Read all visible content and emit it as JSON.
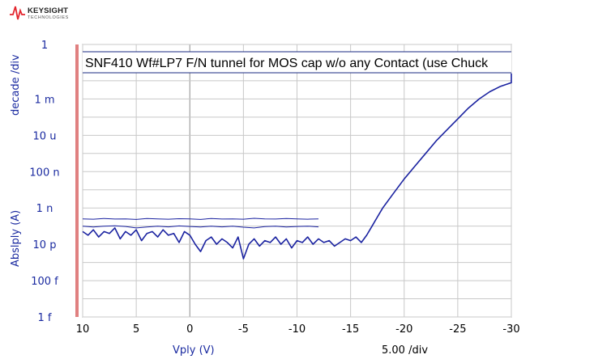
{
  "brand": {
    "name": "KEYSIGHT",
    "sub": "TECHNOLOGIES",
    "color": "#e3262e"
  },
  "chart_data": {
    "type": "line",
    "title": "SNF410 Wf#LP7 F/N tunnel for MOS cap w/o any Contact (use Chuck",
    "xlabel": "Vply (V)",
    "ylabel": "Abslply (A)",
    "ylabel_unit": "decade /div",
    "xdiv_label": "5.00 /div",
    "xlim": [
      10,
      -30
    ],
    "ylim_log10": [
      -15,
      0
    ],
    "x_ticks": [
      "10",
      "5",
      "0",
      "-5",
      "-10",
      "-15",
      "-20",
      "-25",
      "-30"
    ],
    "x_tick_values": [
      10,
      5,
      0,
      -5,
      -10,
      -15,
      -20,
      -25,
      -30
    ],
    "y_ticks": [
      "1",
      "1 m",
      "10 u",
      "100 n",
      "1 n",
      "10 p",
      "100 f",
      "1 f"
    ],
    "y_tick_values_log10": [
      0,
      -3,
      -5,
      -7,
      -9,
      -11,
      -13,
      -15
    ],
    "grid": true,
    "colors": {
      "trace": "#1a22a0",
      "frame_left": "#e08080",
      "grid": "#c8c8c8",
      "zero_line": "#a0a0a0"
    },
    "series": [
      {
        "x": [
          10,
          9,
          8,
          7,
          6,
          5,
          4,
          3,
          2,
          1,
          0,
          -1,
          -2,
          -3,
          -4,
          -5,
          -6,
          -7,
          -8,
          -9,
          -10,
          -11,
          -12
        ],
        "y_log10": [
          -9.6,
          -9.62,
          -9.58,
          -9.61,
          -9.6,
          -9.63,
          -9.58,
          -9.6,
          -9.62,
          -9.59,
          -9.6,
          -9.63,
          -9.58,
          -9.61,
          -9.6,
          -9.62,
          -9.57,
          -9.6,
          -9.61,
          -9.58,
          -9.6,
          -9.62,
          -9.6
        ]
      },
      {
        "x": [
          10,
          9,
          8,
          7,
          6,
          5,
          4,
          3,
          2,
          1,
          0,
          -1,
          -2,
          -3,
          -4,
          -5,
          -6,
          -7,
          -8,
          -9,
          -10,
          -11,
          -12
        ],
        "y_log10": [
          -10.0,
          -10.05,
          -10.0,
          -9.98,
          -10.02,
          -10.1,
          -10.05,
          -10.0,
          -10.04,
          -9.99,
          -10.02,
          -10.05,
          -10.0,
          -10.04,
          -10.0,
          -10.06,
          -10.1,
          -10.03,
          -10.0,
          -10.05,
          -10.02,
          -10.0,
          -10.04
        ]
      },
      {
        "x": [
          10,
          9.5,
          9,
          8.5,
          8,
          7.5,
          7,
          6.5,
          6,
          5.5,
          5,
          4.5,
          4,
          3.5,
          3,
          2.5,
          2,
          1.5,
          1,
          0.5,
          0,
          -0.5,
          -1,
          -1.5,
          -2,
          -2.5,
          -3,
          -3.5,
          -4,
          -4.5,
          -5,
          -5.5,
          -6,
          -6.5,
          -7,
          -7.5,
          -8,
          -8.5,
          -9,
          -9.5,
          -10,
          -10.5,
          -11,
          -11.5,
          -12,
          -12.5,
          -13,
          -13.5,
          -14,
          -14.5,
          -15,
          -15.5,
          -16,
          -16.5,
          -17,
          -17.5,
          -18,
          -19,
          -20,
          -21,
          -22,
          -23,
          -24,
          -25,
          -26,
          -27,
          -28,
          -29,
          -30,
          -30
        ],
        "y_log10": [
          -10.3,
          -10.5,
          -10.2,
          -10.6,
          -10.3,
          -10.4,
          -10.1,
          -10.7,
          -10.3,
          -10.5,
          -10.2,
          -10.8,
          -10.4,
          -10.3,
          -10.6,
          -10.2,
          -10.5,
          -10.4,
          -10.9,
          -10.3,
          -10.5,
          -11.0,
          -11.4,
          -10.8,
          -10.6,
          -11.0,
          -10.7,
          -10.9,
          -11.2,
          -10.6,
          -11.8,
          -11.0,
          -10.7,
          -11.1,
          -10.8,
          -10.9,
          -10.6,
          -11.0,
          -10.7,
          -11.2,
          -10.8,
          -10.9,
          -10.6,
          -11.0,
          -10.7,
          -10.9,
          -10.8,
          -11.1,
          -10.9,
          -10.7,
          -10.8,
          -10.6,
          -10.9,
          -10.5,
          -10.0,
          -9.5,
          -9.0,
          -8.2,
          -7.4,
          -6.7,
          -6.0,
          -5.3,
          -4.7,
          -4.1,
          -3.5,
          -3.0,
          -2.6,
          -2.3,
          -2.1,
          -1.6
        ]
      }
    ]
  }
}
